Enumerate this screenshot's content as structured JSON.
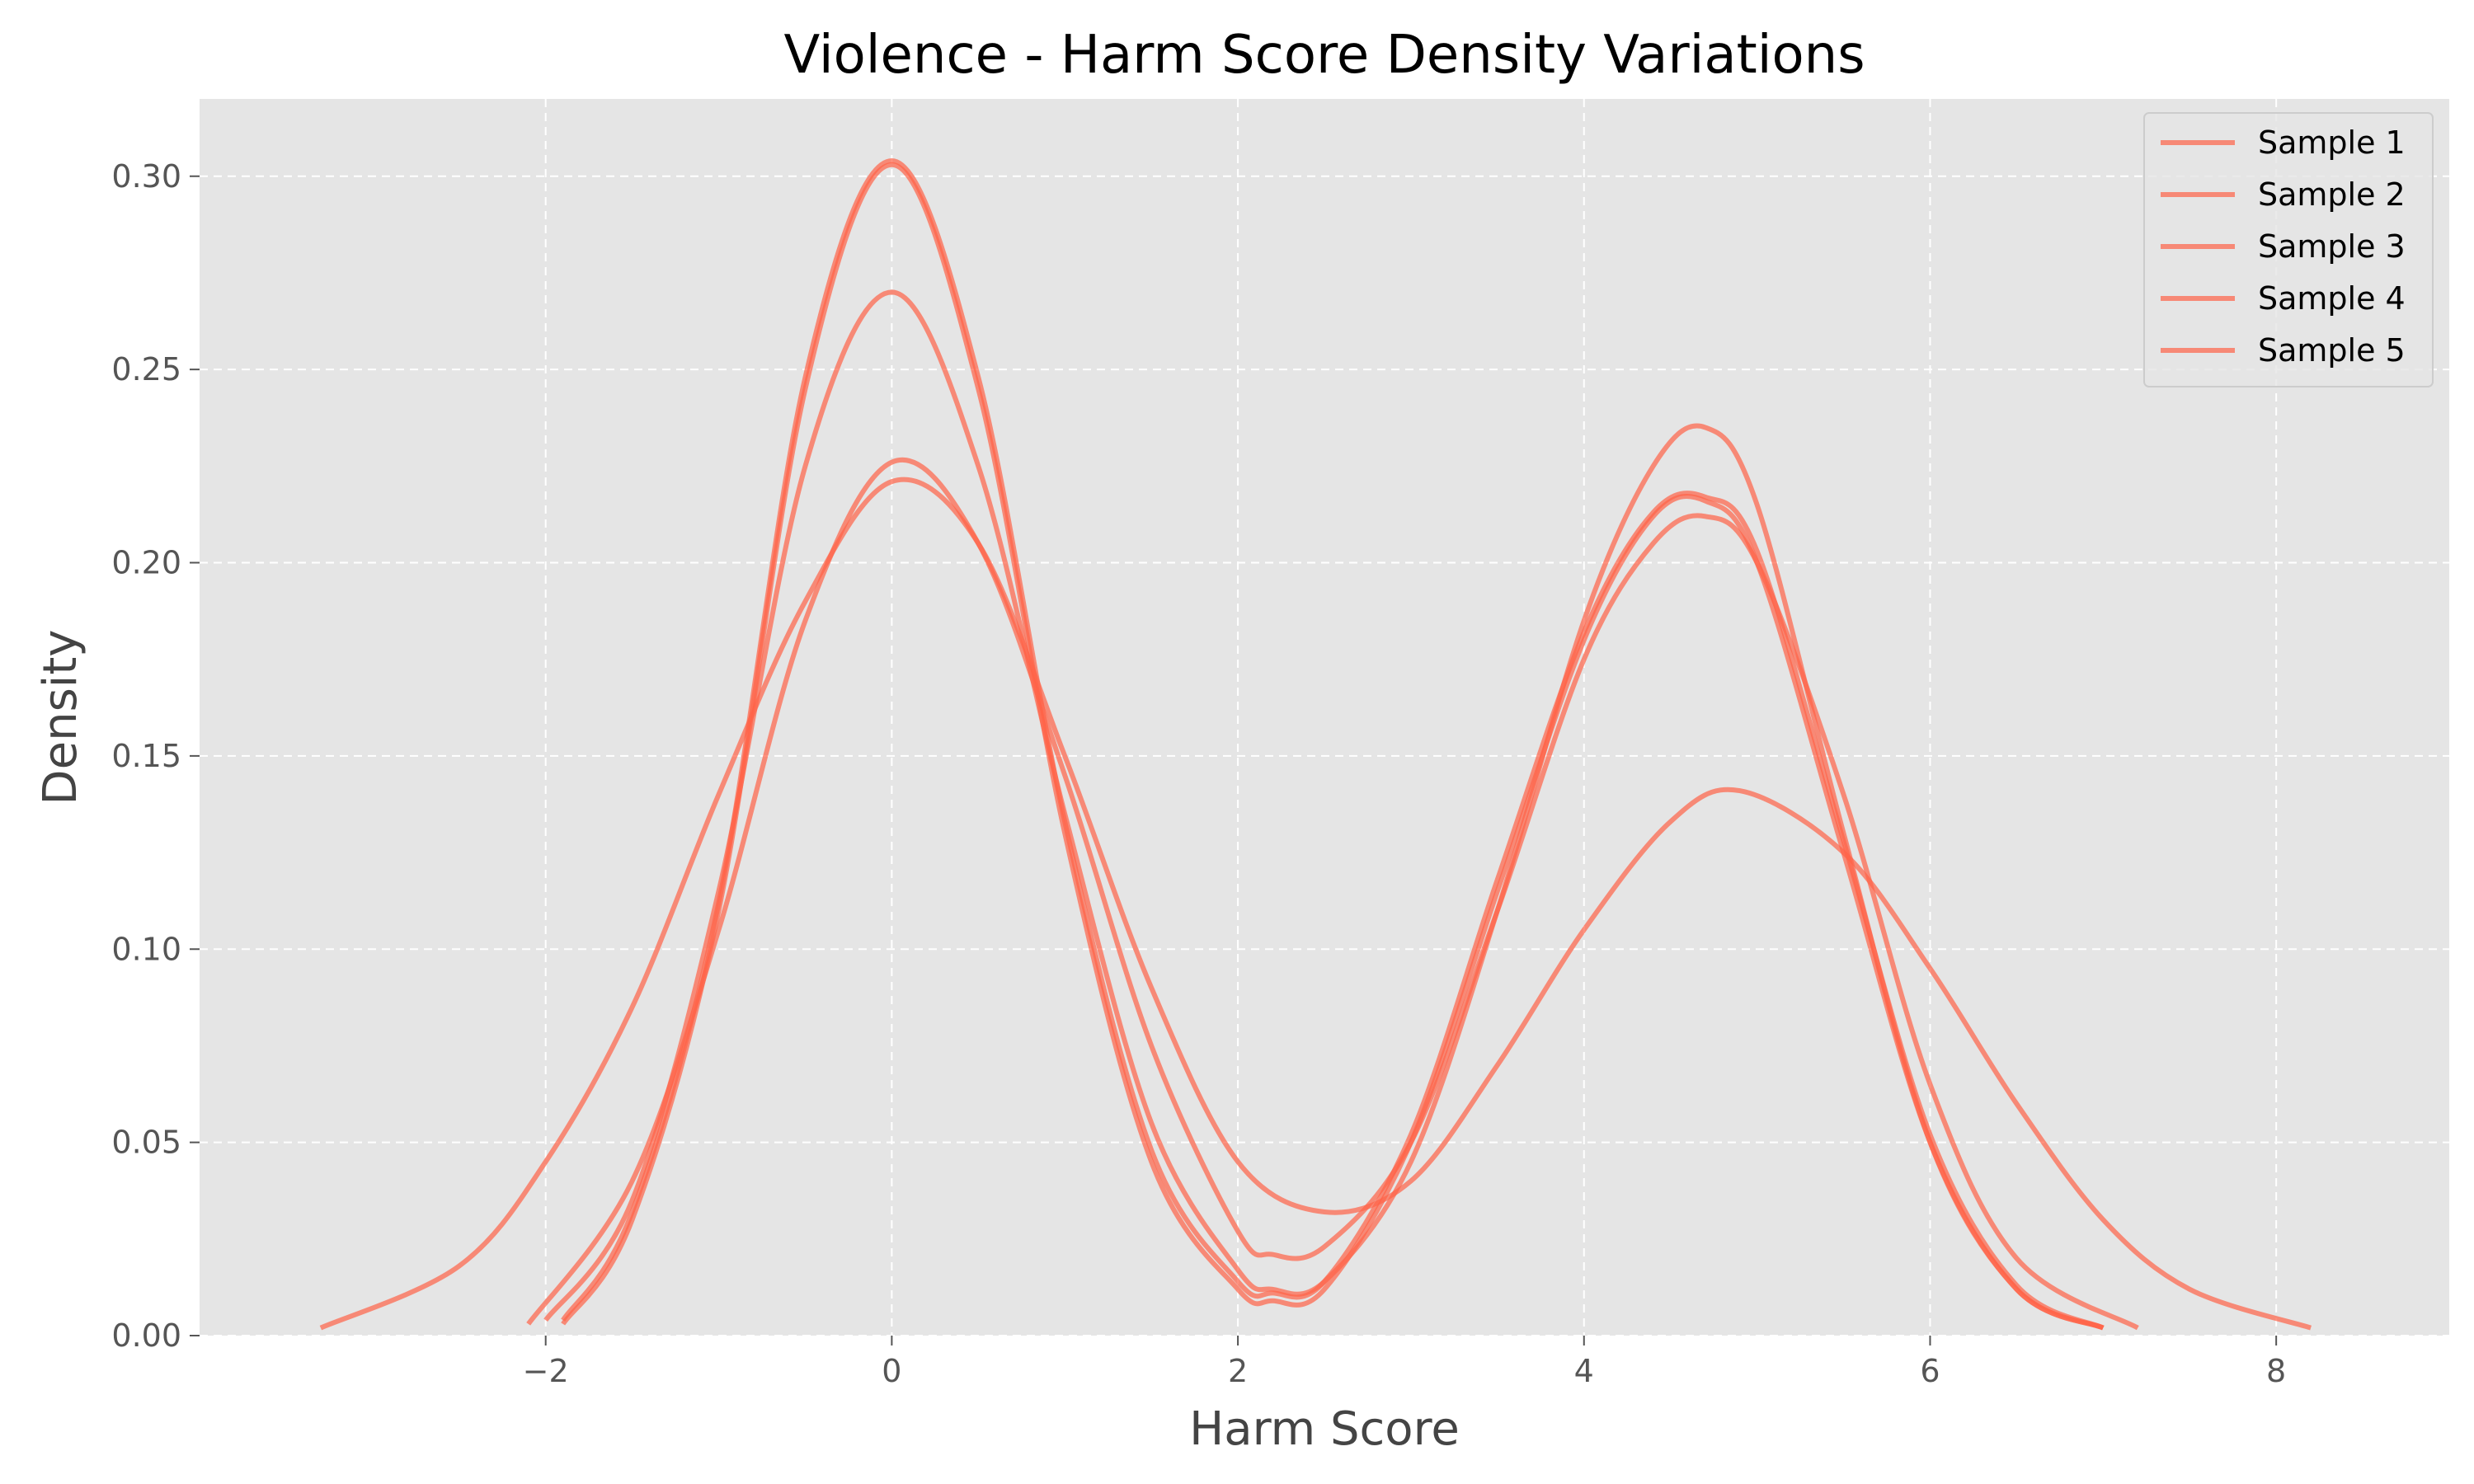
{
  "chart_data": {
    "type": "line",
    "title": "Violence - Harm Score Density Variations",
    "xlabel": "Harm Score",
    "ylabel": "Density",
    "xlim": [
      -4.0,
      9.0
    ],
    "ylim": [
      0.0,
      0.32
    ],
    "x_ticks": [
      -2,
      0,
      2,
      4,
      6,
      8
    ],
    "x_tick_labels": [
      "−2",
      "0",
      "2",
      "4",
      "6",
      "8"
    ],
    "y_ticks": [
      0.0,
      0.05,
      0.1,
      0.15,
      0.2,
      0.25,
      0.3
    ],
    "y_tick_labels": [
      "0.00",
      "0.05",
      "0.10",
      "0.15",
      "0.20",
      "0.25",
      "0.30"
    ],
    "grid": true,
    "legend_position": "top-right",
    "colors": {
      "line": "#ff6347",
      "panel_bg": "#e5e5e5",
      "grid": "#ffffff"
    },
    "series": [
      {
        "name": "Sample 1",
        "x": [
          -1.9,
          -1.5,
          -1.0,
          -0.5,
          0.0,
          0.5,
          1.0,
          1.5,
          2.0,
          2.2,
          2.5,
          3.0,
          3.5,
          4.0,
          4.4,
          4.7,
          5.0,
          5.5,
          6.0,
          6.5,
          7.0
        ],
        "y": [
          0.003,
          0.03,
          0.11,
          0.245,
          0.303,
          0.245,
          0.13,
          0.045,
          0.012,
          0.009,
          0.012,
          0.05,
          0.115,
          0.18,
          0.212,
          0.216,
          0.2,
          0.125,
          0.05,
          0.012,
          0.002
        ]
      },
      {
        "name": "Sample 2",
        "x": [
          -1.9,
          -1.5,
          -1.0,
          -0.5,
          0.0,
          0.5,
          1.0,
          1.5,
          2.0,
          2.2,
          2.5,
          3.0,
          3.5,
          4.0,
          4.4,
          4.7,
          5.0,
          5.5,
          6.0,
          6.5,
          7.0
        ],
        "y": [
          0.004,
          0.032,
          0.112,
          0.248,
          0.304,
          0.248,
          0.133,
          0.048,
          0.014,
          0.011,
          0.014,
          0.052,
          0.118,
          0.182,
          0.213,
          0.217,
          0.203,
          0.128,
          0.052,
          0.013,
          0.002
        ]
      },
      {
        "name": "Sample 3",
        "x": [
          -2.0,
          -1.5,
          -1.0,
          -0.5,
          0.0,
          0.5,
          1.0,
          1.5,
          2.0,
          2.2,
          2.5,
          3.0,
          3.5,
          4.0,
          4.4,
          4.7,
          5.0,
          5.5,
          6.0,
          6.5,
          7.0
        ],
        "y": [
          0.004,
          0.035,
          0.115,
          0.225,
          0.27,
          0.225,
          0.135,
          0.055,
          0.017,
          0.012,
          0.014,
          0.045,
          0.11,
          0.185,
          0.225,
          0.235,
          0.215,
          0.13,
          0.05,
          0.012,
          0.002
        ]
      },
      {
        "name": "Sample 4",
        "x": [
          -2.1,
          -1.5,
          -1.0,
          -0.5,
          0.0,
          0.5,
          1.0,
          1.5,
          2.0,
          2.2,
          2.5,
          3.0,
          3.5,
          4.0,
          4.4,
          4.7,
          5.0,
          5.5,
          6.0,
          6.5,
          7.2
        ],
        "y": [
          0.003,
          0.04,
          0.105,
          0.185,
          0.226,
          0.205,
          0.145,
          0.075,
          0.027,
          0.021,
          0.023,
          0.05,
          0.11,
          0.175,
          0.205,
          0.212,
          0.2,
          0.14,
          0.065,
          0.02,
          0.002
        ]
      },
      {
        "name": "Sample 5",
        "x": [
          -3.3,
          -2.5,
          -2.0,
          -1.5,
          -1.0,
          -0.5,
          0.0,
          0.5,
          1.0,
          1.5,
          2.0,
          2.5,
          3.0,
          3.5,
          4.0,
          4.5,
          4.9,
          5.5,
          6.0,
          6.5,
          7.0,
          7.5,
          8.2
        ],
        "y": [
          0.002,
          0.018,
          0.045,
          0.085,
          0.14,
          0.19,
          0.221,
          0.205,
          0.15,
          0.09,
          0.045,
          0.032,
          0.04,
          0.07,
          0.105,
          0.133,
          0.141,
          0.125,
          0.095,
          0.06,
          0.03,
          0.012,
          0.002
        ]
      }
    ]
  }
}
